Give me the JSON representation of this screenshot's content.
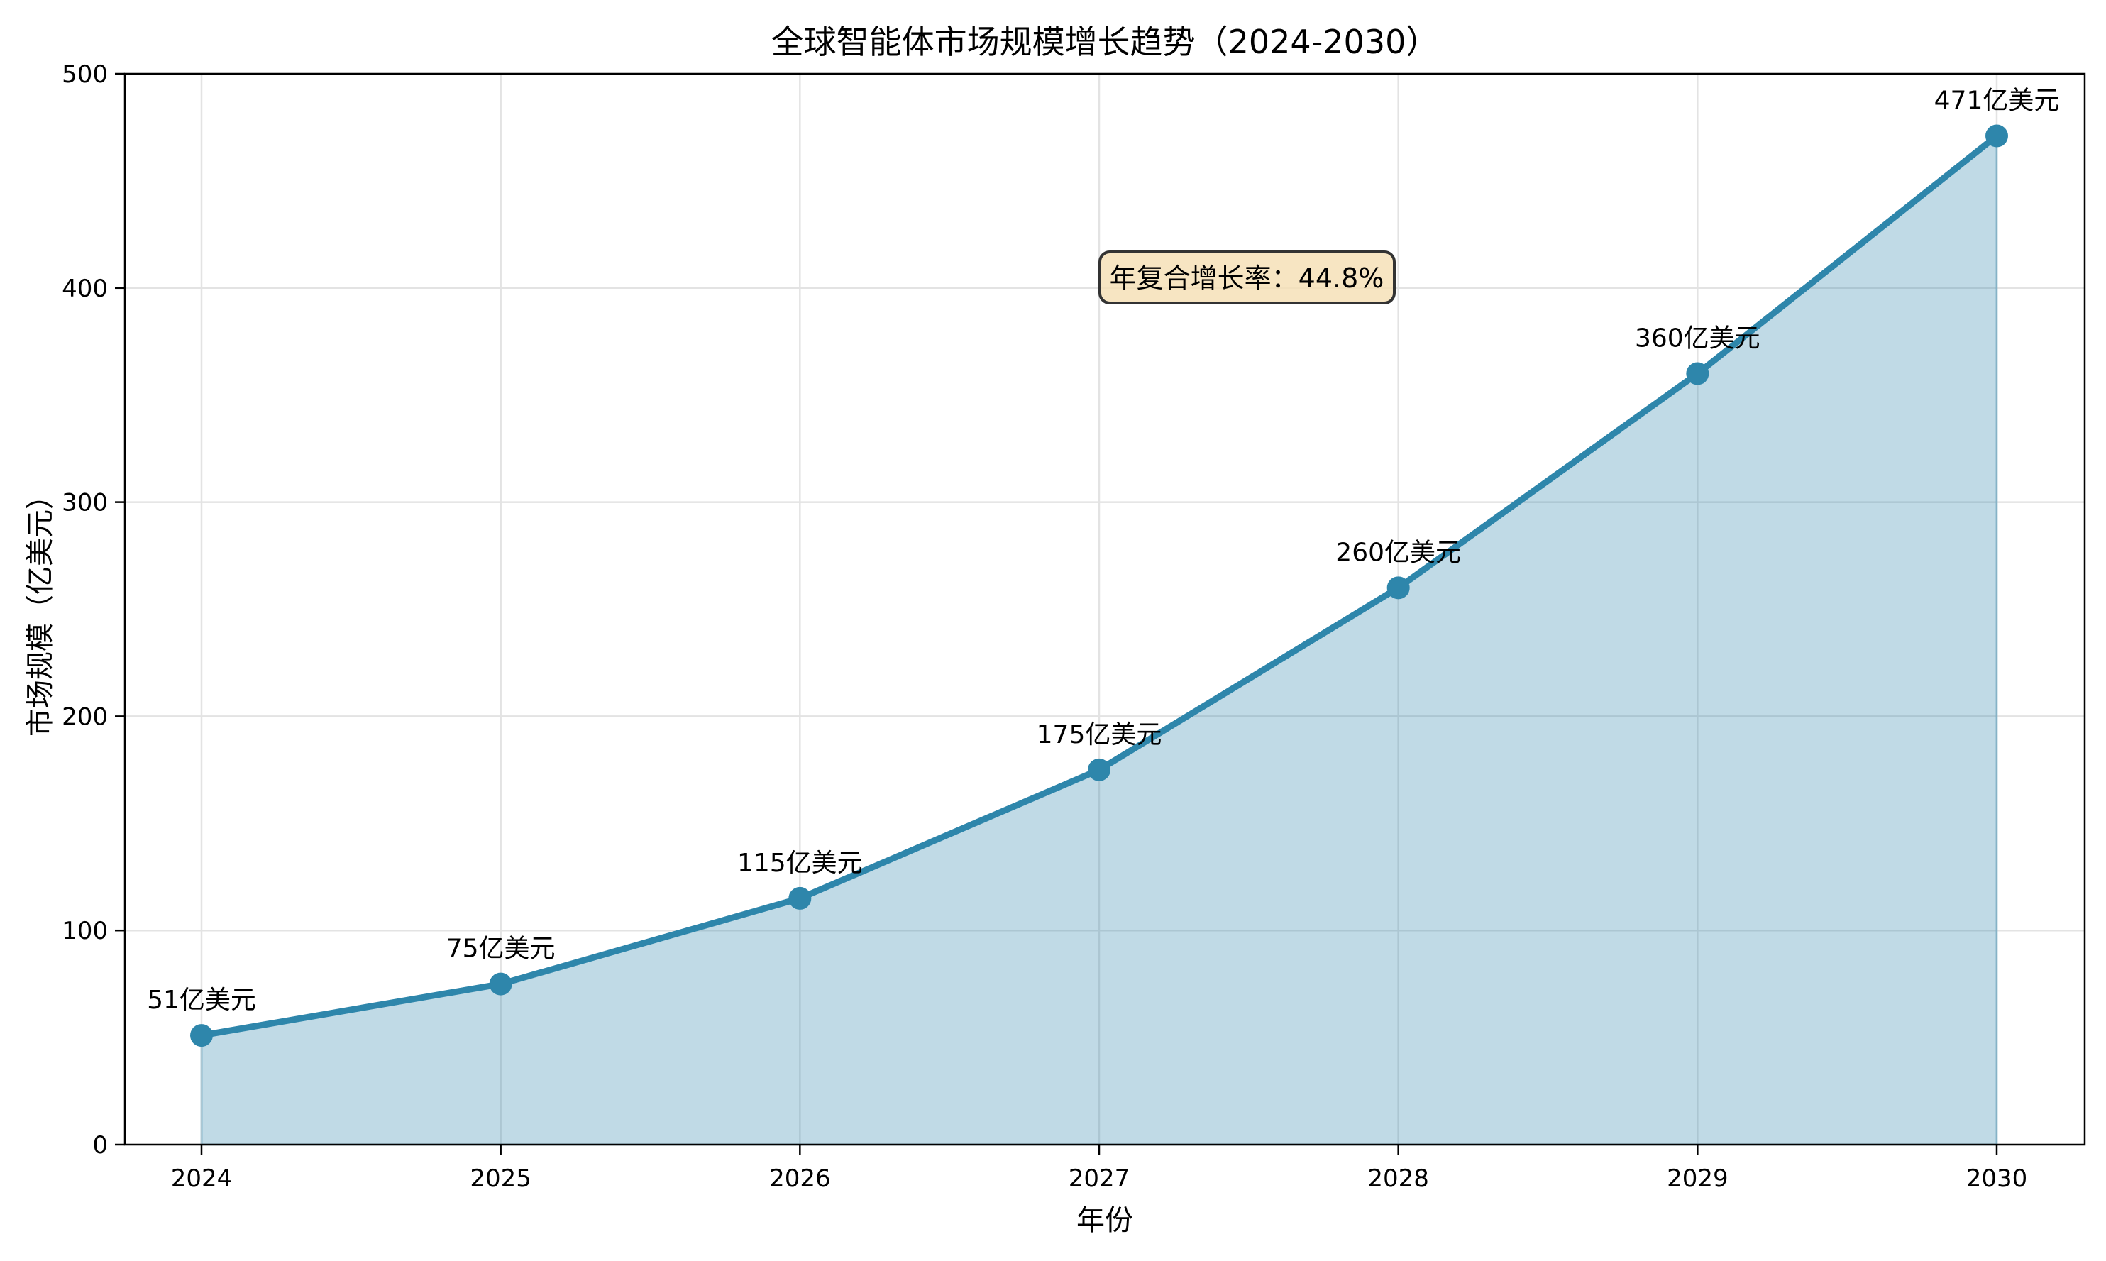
{
  "chart_data": {
    "type": "area",
    "title": "全球智能体市场规模增长趋势（2024-2030）",
    "xlabel": "年份",
    "ylabel": "市场规模（亿美元）",
    "x": [
      2024,
      2025,
      2026,
      2027,
      2028,
      2029,
      2030
    ],
    "x_tick_labels": [
      "2024",
      "2025",
      "2026",
      "2027",
      "2028",
      "2029",
      "2030"
    ],
    "values": [
      51,
      75,
      115,
      175,
      260,
      360,
      471
    ],
    "data_labels": [
      "51亿美元",
      "75亿美元",
      "115亿美元",
      "175亿美元",
      "260亿美元",
      "360亿美元",
      "471亿美元"
    ],
    "ylim": [
      0,
      500
    ],
    "xlim": [
      2023.7,
      2030.3
    ],
    "y_ticks": [
      0,
      100,
      200,
      300,
      400,
      500
    ],
    "y_tick_labels": [
      "0",
      "100",
      "200",
      "300",
      "400",
      "500"
    ],
    "grid": true,
    "annotation": "年复合增长率：44.8%",
    "colors": {
      "line": "#2E86AB",
      "fill": "#2E86AB",
      "annotation_bg": "#F5DEB3"
    }
  }
}
